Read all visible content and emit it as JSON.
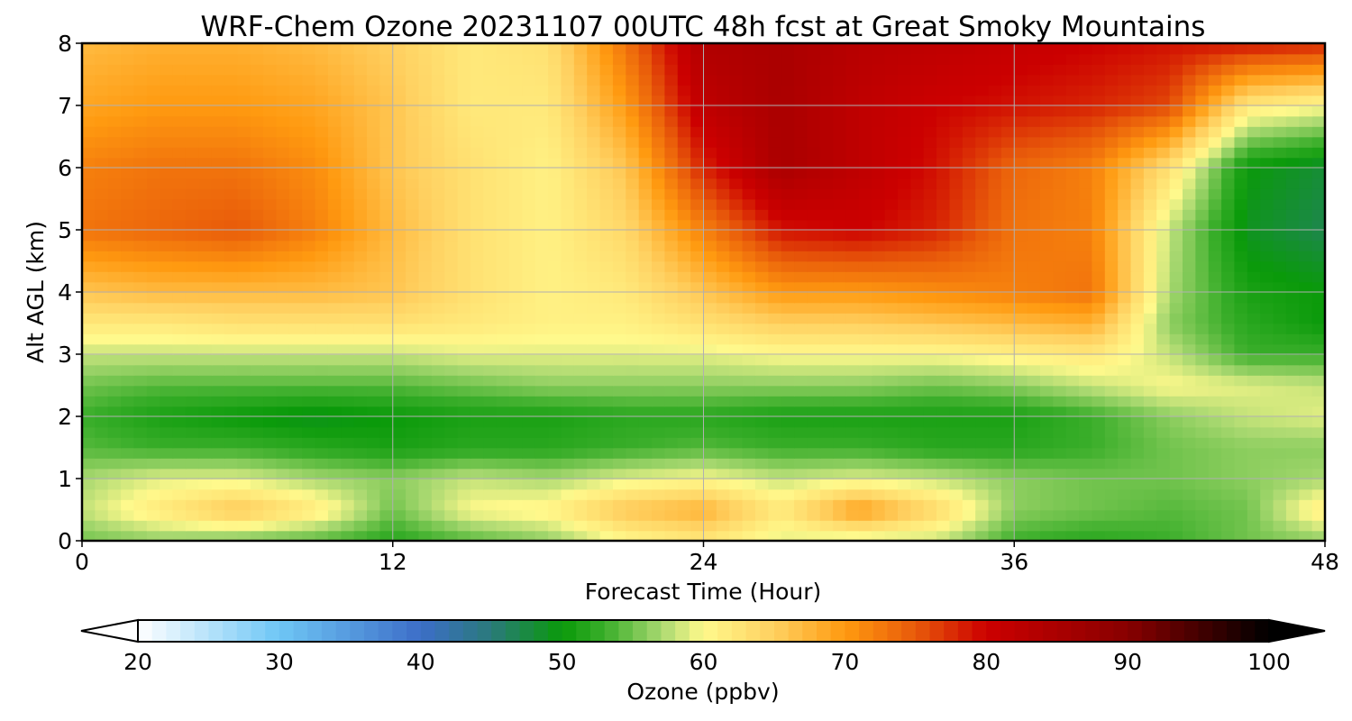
{
  "chart_data": {
    "type": "heatmap",
    "title": "WRF-Chem Ozone  20231107 00UTC 48h fcst at Great Smoky Mountains",
    "xlabel": "Forecast Time (Hour)",
    "ylabel": "Alt AGL (km)",
    "xlim": [
      0,
      48
    ],
    "ylim": [
      0,
      8
    ],
    "x_ticks": [
      "0",
      "12",
      "24",
      "36",
      "48"
    ],
    "y_ticks": [
      "0",
      "1",
      "2",
      "3",
      "4",
      "5",
      "6",
      "7",
      "8"
    ],
    "grid": true,
    "x": [
      0,
      3,
      6,
      9,
      12,
      15,
      18,
      21,
      24,
      27,
      30,
      33,
      36,
      39,
      42,
      45,
      48
    ],
    "y": [
      0,
      0.5,
      1,
      1.5,
      2,
      2.5,
      3,
      3.5,
      4,
      5,
      6,
      7,
      8
    ],
    "z": [
      [
        55,
        56,
        55,
        54,
        52,
        54,
        56,
        60,
        62,
        59,
        58,
        58,
        53,
        52,
        53,
        55,
        56
      ],
      [
        58,
        62,
        66,
        62,
        55,
        60,
        61,
        66,
        68,
        62,
        70,
        64,
        56,
        55,
        54,
        55,
        62
      ],
      [
        57,
        59,
        59,
        57,
        56,
        58,
        57,
        59,
        60,
        58,
        59,
        58,
        56,
        55,
        55,
        56,
        57
      ],
      [
        54,
        53,
        53,
        52,
        51,
        52,
        52,
        53,
        54,
        53,
        53,
        52,
        52,
        53,
        55,
        56,
        56
      ],
      [
        53,
        51,
        50,
        49,
        50,
        51,
        51,
        52,
        52,
        51,
        51,
        51,
        51,
        53,
        56,
        58,
        59
      ],
      [
        55,
        54,
        54,
        54,
        54,
        55,
        56,
        56,
        56,
        56,
        56,
        55,
        56,
        58,
        60,
        59,
        58
      ],
      [
        58,
        58,
        58,
        58,
        58,
        59,
        59,
        59,
        59,
        60,
        60,
        60,
        61,
        62,
        58,
        53,
        53
      ],
      [
        62,
        62,
        63,
        63,
        63,
        62,
        61,
        61,
        63,
        65,
        65,
        66,
        67,
        68,
        56,
        52,
        50
      ],
      [
        66,
        67,
        67,
        67,
        66,
        63,
        61,
        62,
        66,
        70,
        70,
        71,
        72,
        73,
        57,
        51,
        50
      ],
      [
        73,
        74,
        75,
        72,
        67,
        63,
        61,
        64,
        72,
        79,
        80,
        78,
        73,
        72,
        58,
        49,
        47
      ],
      [
        72,
        73,
        73,
        71,
        66,
        63,
        61,
        66,
        78,
        85,
        82,
        79,
        74,
        72,
        63,
        50,
        48
      ],
      [
        69,
        70,
        70,
        69,
        66,
        62,
        62,
        70,
        82,
        85,
        82,
        80,
        79,
        78,
        76,
        62,
        60
      ],
      [
        67,
        68,
        68,
        67,
        65,
        62,
        63,
        73,
        84,
        85,
        83,
        82,
        81,
        80,
        79,
        79,
        78
      ]
    ],
    "colorbar": {
      "label": "Ozone  (ppbv)",
      "min": 20,
      "max": 100,
      "ticks": [
        "20",
        "30",
        "40",
        "50",
        "60",
        "70",
        "80",
        "90",
        "100"
      ],
      "extend": "both",
      "stops": [
        {
          "v": 20,
          "c": "#ffffff"
        },
        {
          "v": 30,
          "c": "#6ec6f5"
        },
        {
          "v": 40,
          "c": "#3c6ec8"
        },
        {
          "v": 45,
          "c": "#2a7a7a"
        },
        {
          "v": 50,
          "c": "#0a9a0a"
        },
        {
          "v": 53,
          "c": "#3aae2a"
        },
        {
          "v": 57,
          "c": "#a8d870"
        },
        {
          "v": 60,
          "c": "#fff98c"
        },
        {
          "v": 65,
          "c": "#ffd060"
        },
        {
          "v": 70,
          "c": "#ff9a10"
        },
        {
          "v": 75,
          "c": "#e85a0a"
        },
        {
          "v": 80,
          "c": "#cc0000"
        },
        {
          "v": 90,
          "c": "#880000"
        },
        {
          "v": 100,
          "c": "#000000"
        }
      ]
    }
  }
}
